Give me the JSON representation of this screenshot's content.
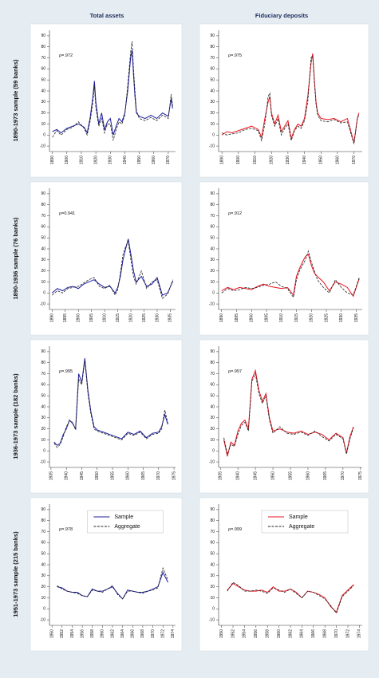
{
  "column_titles": [
    "Total assets",
    "Fiduciary deposits"
  ],
  "row_titles": [
    "1890-1973 sample (59 banks)",
    "1890-1936 sample (76 banks)",
    "1936-1973 sample (182 banks)",
    "1951-1973 sample (215 banks)"
  ],
  "chart_data": [
    {
      "type": "line",
      "annotation": "ρ=.972",
      "x": [
        1890,
        1893,
        1896,
        1900,
        1904,
        1908,
        1912,
        1914,
        1916,
        1918,
        1919,
        1920,
        1922,
        1924,
        1926,
        1928,
        1930,
        1932,
        1934,
        1936,
        1938,
        1940,
        1942,
        1944,
        1945,
        1946,
        1947,
        1948,
        1950,
        1954,
        1958,
        1962,
        1966,
        1970,
        1972,
        1973
      ],
      "series": [
        {
          "color": "#1c1ca0",
          "dashed": false,
          "values": [
            3,
            5,
            2,
            6,
            8,
            10,
            7,
            2,
            15,
            35,
            49,
            30,
            10,
            20,
            5,
            12,
            15,
            0,
            8,
            15,
            12,
            20,
            40,
            70,
            77,
            55,
            35,
            20,
            17,
            15,
            18,
            15,
            20,
            17,
            33,
            24
          ]
        },
        {
          "color": "#222222",
          "dashed": true,
          "values": [
            -2,
            4,
            0,
            5,
            7,
            12,
            6,
            0,
            12,
            30,
            45,
            25,
            8,
            15,
            2,
            10,
            10,
            -5,
            5,
            12,
            10,
            18,
            45,
            75,
            85,
            60,
            40,
            22,
            15,
            13,
            16,
            13,
            18,
            15,
            37,
            26
          ]
        }
      ],
      "xlim": [
        1888,
        1975
      ],
      "xticks": [
        1890,
        1900,
        1910,
        1920,
        1930,
        1940,
        1950,
        1960,
        1970
      ],
      "ylim": [
        -15,
        95
      ],
      "yticks": [
        -10,
        0,
        10,
        20,
        30,
        40,
        50,
        60,
        70,
        80,
        90
      ]
    },
    {
      "type": "line",
      "annotation": "ρ=.975",
      "x": [
        1890,
        1893,
        1896,
        1900,
        1904,
        1908,
        1912,
        1914,
        1916,
        1918,
        1919,
        1920,
        1922,
        1924,
        1926,
        1928,
        1930,
        1932,
        1934,
        1936,
        1938,
        1940,
        1942,
        1944,
        1945,
        1946,
        1947,
        1948,
        1950,
        1954,
        1958,
        1962,
        1966,
        1970,
        1972,
        1973
      ],
      "series": [
        {
          "color": "#e8141e",
          "dashed": false,
          "values": [
            0,
            3,
            2,
            4,
            6,
            8,
            5,
            -2,
            15,
            30,
            35,
            20,
            10,
            18,
            3,
            8,
            13,
            -3,
            5,
            10,
            8,
            15,
            35,
            65,
            74,
            50,
            30,
            20,
            15,
            14,
            15,
            12,
            15,
            -7,
            15,
            20
          ]
        },
        {
          "color": "#222222",
          "dashed": true,
          "values": [
            2,
            0,
            1,
            2,
            5,
            6,
            4,
            -5,
            10,
            35,
            38,
            18,
            8,
            15,
            0,
            6,
            10,
            -5,
            4,
            8,
            6,
            13,
            30,
            70,
            72,
            48,
            28,
            18,
            13,
            12,
            14,
            11,
            12,
            -8,
            14,
            19
          ]
        }
      ],
      "xlim": [
        1888,
        1975
      ],
      "xticks": [
        1890,
        1900,
        1910,
        1920,
        1930,
        1940,
        1950,
        1960,
        1970
      ],
      "ylim": [
        -15,
        95
      ],
      "yticks": [
        -10,
        0,
        10,
        20,
        30,
        40,
        50,
        60,
        70,
        80,
        90
      ]
    },
    {
      "type": "line",
      "annotation": "ρ=0.941",
      "x": [
        1890,
        1892,
        1894,
        1896,
        1898,
        1900,
        1902,
        1904,
        1906,
        1908,
        1910,
        1912,
        1914,
        1915,
        1916,
        1917,
        1918,
        1919,
        1920,
        1921,
        1922,
        1924,
        1926,
        1928,
        1930,
        1932,
        1934,
        1936
      ],
      "series": [
        {
          "color": "#1c1ca0",
          "dashed": false,
          "values": [
            0,
            4,
            2,
            5,
            6,
            4,
            8,
            10,
            12,
            8,
            5,
            6,
            0,
            5,
            15,
            30,
            40,
            49,
            35,
            20,
            10,
            15,
            6,
            8,
            14,
            -2,
            0,
            11
          ]
        },
        {
          "color": "#222222",
          "dashed": true,
          "values": [
            -2,
            2,
            0,
            4,
            5,
            6,
            9,
            12,
            14,
            6,
            4,
            7,
            -2,
            3,
            18,
            35,
            42,
            47,
            30,
            15,
            8,
            20,
            4,
            10,
            12,
            -5,
            -1,
            12
          ]
        }
      ],
      "xlim": [
        1889,
        1937
      ],
      "xticks": [
        1890,
        1895,
        1900,
        1905,
        1910,
        1915,
        1920,
        1925,
        1930,
        1935
      ],
      "ylim": [
        -15,
        95
      ],
      "yticks": [
        -10,
        0,
        10,
        20,
        30,
        40,
        50,
        60,
        70,
        80,
        90
      ]
    },
    {
      "type": "line",
      "annotation": "ρ=.912",
      "x": [
        1890,
        1892,
        1894,
        1896,
        1898,
        1900,
        1902,
        1904,
        1906,
        1908,
        1910,
        1912,
        1914,
        1915,
        1916,
        1917,
        1918,
        1919,
        1920,
        1921,
        1922,
        1924,
        1926,
        1928,
        1930,
        1932,
        1934,
        1936
      ],
      "series": [
        {
          "color": "#e8141e",
          "dashed": false,
          "values": [
            2,
            5,
            3,
            5,
            4,
            3,
            6,
            8,
            6,
            5,
            4,
            5,
            -2,
            15,
            22,
            28,
            33,
            35,
            25,
            18,
            15,
            10,
            2,
            10,
            8,
            5,
            -3,
            13
          ]
        },
        {
          "color": "#222222",
          "dashed": true,
          "values": [
            0,
            4,
            2,
            3,
            5,
            4,
            5,
            7,
            8,
            10,
            6,
            4,
            -4,
            12,
            20,
            25,
            30,
            38,
            28,
            20,
            12,
            5,
            0,
            12,
            5,
            0,
            -2,
            14
          ]
        }
      ],
      "xlim": [
        1889,
        1937
      ],
      "xticks": [
        1890,
        1895,
        1900,
        1905,
        1910,
        1915,
        1920,
        1925,
        1930,
        1935
      ],
      "ylim": [
        -15,
        95
      ],
      "yticks": [
        -10,
        0,
        10,
        20,
        30,
        40,
        50,
        60,
        70,
        80,
        90
      ]
    },
    {
      "type": "line",
      "annotation": "ρ=.995",
      "x": [
        1936,
        1937,
        1938,
        1939,
        1940,
        1941,
        1942,
        1943,
        1944,
        1945,
        1946,
        1947,
        1948,
        1949,
        1950,
        1952,
        1954,
        1956,
        1958,
        1960,
        1962,
        1964,
        1966,
        1968,
        1970,
        1971,
        1972,
        1973
      ],
      "series": [
        {
          "color": "#1c1ca0",
          "dashed": false,
          "values": [
            8,
            5,
            7,
            15,
            20,
            28,
            25,
            20,
            70,
            62,
            84,
            55,
            35,
            22,
            19,
            17,
            15,
            13,
            11,
            17,
            15,
            18,
            12,
            16,
            17,
            22,
            33,
            24
          ]
        },
        {
          "color": "#222222",
          "dashed": true,
          "values": [
            7,
            3,
            6,
            13,
            22,
            27,
            26,
            19,
            65,
            60,
            82,
            52,
            33,
            20,
            18,
            16,
            14,
            12,
            10,
            16,
            14,
            17,
            11,
            15,
            16,
            20,
            37,
            25
          ]
        }
      ],
      "xlim": [
        1934.5,
        1975.5
      ],
      "xticks": [
        1935,
        1940,
        1945,
        1950,
        1955,
        1960,
        1965,
        1970,
        1975
      ],
      "ylim": [
        -15,
        95
      ],
      "yticks": [
        -10,
        0,
        10,
        20,
        30,
        40,
        50,
        60,
        70,
        80,
        90
      ]
    },
    {
      "type": "line",
      "annotation": "ρ=.997",
      "x": [
        1936,
        1937,
        1938,
        1939,
        1940,
        1941,
        1942,
        1943,
        1944,
        1945,
        1946,
        1947,
        1948,
        1949,
        1950,
        1952,
        1954,
        1956,
        1958,
        1960,
        1962,
        1964,
        1966,
        1968,
        1970,
        1971,
        1972,
        1973
      ],
      "series": [
        {
          "color": "#e8141e",
          "dashed": false,
          "values": [
            10,
            -5,
            8,
            5,
            18,
            25,
            28,
            20,
            65,
            73,
            55,
            45,
            52,
            30,
            18,
            20,
            17,
            16,
            18,
            15,
            17,
            15,
            10,
            16,
            12,
            -2,
            13,
            22
          ]
        },
        {
          "color": "#222222",
          "dashed": true,
          "values": [
            12,
            -3,
            6,
            4,
            15,
            23,
            26,
            18,
            63,
            70,
            52,
            43,
            50,
            28,
            16,
            22,
            16,
            15,
            17,
            14,
            18,
            13,
            9,
            15,
            11,
            -3,
            11,
            21
          ]
        }
      ],
      "xlim": [
        1934.5,
        1975.5
      ],
      "xticks": [
        1935,
        1940,
        1945,
        1950,
        1955,
        1960,
        1965,
        1970,
        1975
      ],
      "ylim": [
        -15,
        95
      ],
      "yticks": [
        -10,
        0,
        10,
        20,
        30,
        40,
        50,
        60,
        70,
        80,
        90
      ]
    },
    {
      "type": "line",
      "annotation": "ρ=.978",
      "legend": "top",
      "x": [
        1951,
        1952,
        1953,
        1954,
        1955,
        1956,
        1957,
        1958,
        1959,
        1960,
        1961,
        1962,
        1963,
        1964,
        1965,
        1966,
        1967,
        1968,
        1969,
        1970,
        1971,
        1972,
        1973
      ],
      "series": [
        {
          "name": "Sample",
          "color": "#1c1ca0",
          "dashed": false,
          "values": [
            20,
            19,
            16,
            15,
            15,
            12,
            11,
            18,
            16,
            16,
            18,
            20,
            14,
            9,
            17,
            16,
            15,
            15,
            16,
            18,
            20,
            33,
            24
          ]
        },
        {
          "name": "Aggregate",
          "color": "#222222",
          "dashed": true,
          "values": [
            21,
            18,
            16,
            15,
            14,
            12,
            11,
            17,
            16,
            15,
            18,
            21,
            13,
            9,
            16,
            16,
            15,
            14,
            16,
            17,
            19,
            37,
            26
          ]
        }
      ],
      "xlim": [
        1949.5,
        1974.5
      ],
      "xticks": [
        1950,
        1952,
        1954,
        1956,
        1958,
        1960,
        1962,
        1964,
        1966,
        1968,
        1970,
        1972,
        1974
      ],
      "ylim": [
        -15,
        95
      ],
      "yticks": [
        -10,
        0,
        10,
        20,
        30,
        40,
        50,
        60,
        70,
        80,
        90
      ]
    },
    {
      "type": "line",
      "annotation": "ρ=.999",
      "legend": "top",
      "x": [
        1951,
        1952,
        1953,
        1954,
        1955,
        1956,
        1957,
        1958,
        1959,
        1960,
        1961,
        1962,
        1963,
        1964,
        1965,
        1966,
        1967,
        1968,
        1969,
        1970,
        1971,
        1972,
        1973
      ],
      "series": [
        {
          "name": "Sample",
          "color": "#e8141e",
          "dashed": false,
          "values": [
            17,
            23,
            20,
            17,
            16,
            16,
            17,
            15,
            20,
            16,
            16,
            18,
            15,
            10,
            16,
            15,
            13,
            10,
            2,
            -3,
            12,
            17,
            22
          ]
        },
        {
          "name": "Aggregate",
          "color": "#222222",
          "dashed": true,
          "values": [
            16,
            24,
            21,
            16,
            16,
            17,
            16,
            14,
            19,
            17,
            15,
            18,
            14,
            10,
            16,
            15,
            12,
            9,
            3,
            -4,
            11,
            16,
            21
          ]
        }
      ],
      "xlim": [
        1949.5,
        1974.5
      ],
      "xticks": [
        1950,
        1952,
        1954,
        1956,
        1958,
        1960,
        1962,
        1964,
        1966,
        1968,
        1970,
        1972,
        1974
      ],
      "ylim": [
        -15,
        95
      ],
      "yticks": [
        -10,
        0,
        10,
        20,
        30,
        40,
        50,
        60,
        70,
        80,
        90
      ]
    }
  ]
}
